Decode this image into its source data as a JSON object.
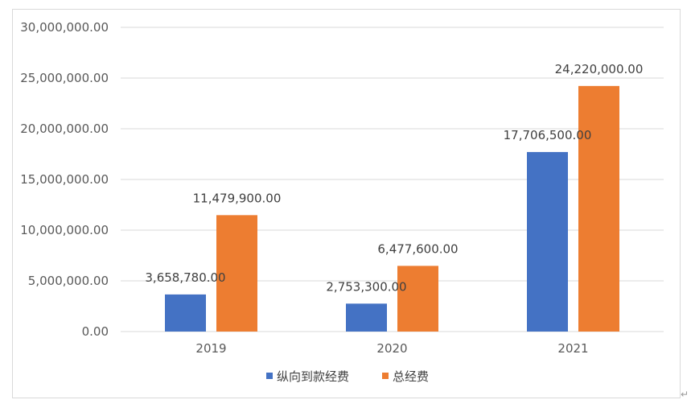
{
  "chart_data": {
    "type": "bar",
    "categories": [
      "2019",
      "2020",
      "2021"
    ],
    "series": [
      {
        "name": "纵向到款经费",
        "color": "#4472C4",
        "values": [
          3658780.0,
          2753300.0,
          17706500.0
        ],
        "labels": [
          "3,658,780.00",
          "2,753,300.00",
          "17,706,500.00"
        ]
      },
      {
        "name": "总经费",
        "color": "#ED7D31",
        "values": [
          11479900.0,
          6477600.0,
          24220000.0
        ],
        "labels": [
          "11,479,900.00",
          "6,477,600.00",
          "24,220,000.00"
        ]
      }
    ],
    "ylim": [
      0,
      30000000
    ],
    "yticks": [
      0,
      5000000,
      10000000,
      15000000,
      20000000,
      25000000,
      30000000
    ],
    "ytick_labels": [
      "0.00",
      "5,000,000.00",
      "10,000,000.00",
      "15,000,000.00",
      "20,000,000.00",
      "25,000,000.00",
      "30,000,000.00"
    ],
    "grid": true,
    "legend": "bottom",
    "gridline_color": "#d9d9d9"
  }
}
